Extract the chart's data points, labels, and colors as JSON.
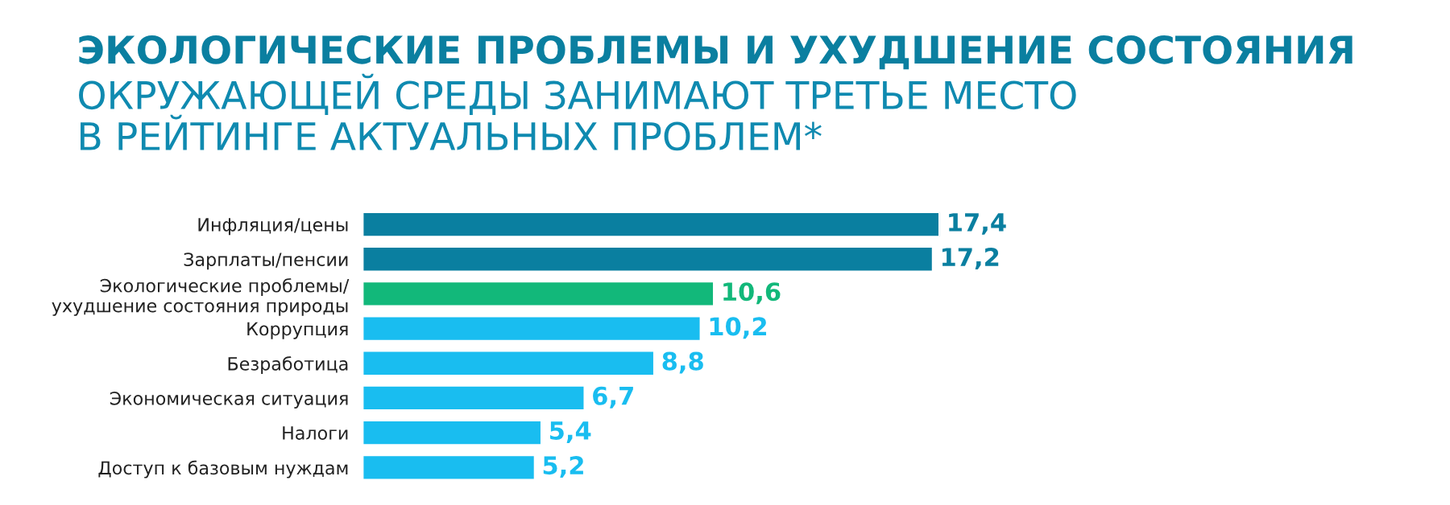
{
  "chart_data": {
    "type": "bar",
    "orientation": "horizontal",
    "title": "ЭКОЛОГИЧЕСКИЕ ПРОБЛЕМЫ И УХУДШЕНИЕ СОСТОЯНИЯ",
    "subtitle": "ОКРУЖАЮЩЕЙ СРЕДЫ ЗАНИМАЮТ ТРЕТЬЕ МЕСТО\nВ РЕЙТИНГЕ АКТУАЛЬНЫХ ПРОБЛЕМ*",
    "categories": [
      "Инфляция/цены",
      "Зарплаты/пенсии",
      "Экологические проблемы/\nухудшение состояния природы",
      "Коррупция",
      "Безработица",
      "Экономическая ситуация",
      "Налоги",
      "Доступ к базовым нуждам"
    ],
    "values": [
      17.4,
      17.2,
      10.6,
      10.2,
      8.8,
      6.7,
      5.4,
      5.2
    ],
    "value_labels": [
      "17,4",
      "17,2",
      "10,6",
      "10,2",
      "8,8",
      "6,7",
      "5,4",
      "5,2"
    ],
    "colors": [
      "#0a7fa0",
      "#0a7fa0",
      "#12b87a",
      "#19bdf0",
      "#19bdf0",
      "#19bdf0",
      "#19bdf0",
      "#19bdf0"
    ]
  }
}
